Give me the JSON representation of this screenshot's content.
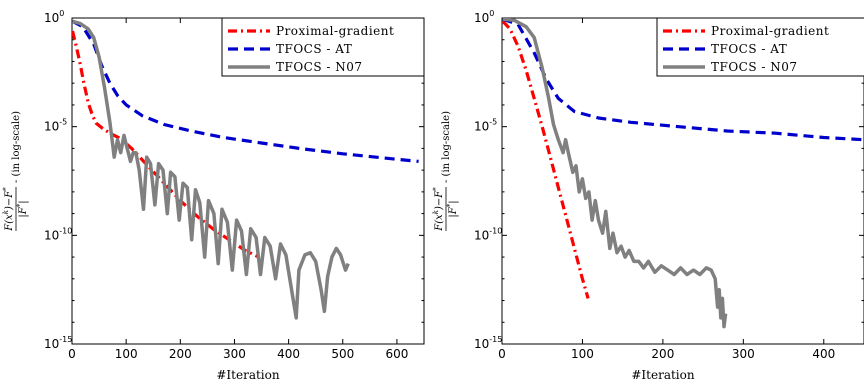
{
  "chart_data": [
    {
      "type": "line",
      "xlabel": "#Iteration",
      "ylabel": "F(x^k)−F* / |F*|  (in log-scale)",
      "ylabel_parts": {
        "num": "F(x",
        "k": "k",
        "rest": ")−F",
        "star": "*",
        "den": "|F",
        "suffix": " (in log-scale)"
      },
      "yscale": "log",
      "xlim": [
        0,
        650
      ],
      "ylim": [
        1e-15,
        1
      ],
      "xticks": [
        0,
        100,
        200,
        300,
        400,
        500,
        600
      ],
      "xtick_labels": [
        "0",
        "100",
        "200",
        "300",
        "400",
        "500",
        "600"
      ],
      "ytick_exponents": [
        0,
        -5,
        -10,
        -15
      ],
      "ytick_base": "10",
      "ytick_exp_labels": [
        "0",
        "-5",
        "-10",
        "-15"
      ],
      "legend_position": "top-right",
      "series": [
        {
          "name": "Proximal-gradient",
          "color": "#ff0000",
          "style": "dashdot",
          "points": [
            [
              1,
              -0.6
            ],
            [
              8,
              -1.3
            ],
            [
              15,
              -2.1
            ],
            [
              22,
              -3.0
            ],
            [
              30,
              -3.9
            ],
            [
              38,
              -4.5
            ],
            [
              45,
              -4.85
            ],
            [
              55,
              -5.05
            ],
            [
              70,
              -5.3
            ],
            [
              90,
              -5.55
            ],
            [
              110,
              -6.0
            ],
            [
              140,
              -6.8
            ],
            [
              170,
              -7.6
            ],
            [
              200,
              -8.4
            ],
            [
              230,
              -9.1
            ],
            [
              260,
              -9.7
            ],
            [
              290,
              -10.2
            ],
            [
              320,
              -10.7
            ],
            [
              345,
              -11.0
            ]
          ]
        },
        {
          "name": "TFOCS - AT",
          "color": "#0000cc",
          "style": "dashed",
          "points": [
            [
              1,
              -0.15
            ],
            [
              20,
              -0.4
            ],
            [
              40,
              -1.2
            ],
            [
              55,
              -2.2
            ],
            [
              70,
              -3.0
            ],
            [
              85,
              -3.6
            ],
            [
              100,
              -4.0
            ],
            [
              130,
              -4.5
            ],
            [
              170,
              -4.9
            ],
            [
              220,
              -5.2
            ],
            [
              280,
              -5.5
            ],
            [
              350,
              -5.75
            ],
            [
              420,
              -6.0
            ],
            [
              500,
              -6.25
            ],
            [
              580,
              -6.45
            ],
            [
              640,
              -6.6
            ]
          ]
        },
        {
          "name": "TFOCS - N07",
          "color": "#808080",
          "style": "solid",
          "points": [
            [
              1,
              -0.15
            ],
            [
              15,
              -0.25
            ],
            [
              30,
              -0.5
            ],
            [
              40,
              -0.9
            ],
            [
              50,
              -1.8
            ],
            [
              60,
              -3.2
            ],
            [
              70,
              -4.8
            ],
            [
              78,
              -6.4
            ],
            [
              84,
              -5.6
            ],
            [
              90,
              -6.2
            ],
            [
              96,
              -5.4
            ],
            [
              102,
              -6.0
            ],
            [
              108,
              -6.6
            ],
            [
              113,
              -6.2
            ],
            [
              118,
              -6.2
            ],
            [
              124,
              -7.0
            ],
            [
              132,
              -8.8
            ],
            [
              138,
              -6.4
            ],
            [
              145,
              -6.7
            ],
            [
              153,
              -8.6
            ],
            [
              160,
              -6.7
            ],
            [
              168,
              -7.0
            ],
            [
              176,
              -9.0
            ],
            [
              182,
              -7.1
            ],
            [
              190,
              -7.3
            ],
            [
              198,
              -9.3
            ],
            [
              205,
              -7.6
            ],
            [
              213,
              -7.8
            ],
            [
              221,
              -10.2
            ],
            [
              228,
              -7.9
            ],
            [
              236,
              -8.5
            ],
            [
              245,
              -11.0
            ],
            [
              252,
              -8.4
            ],
            [
              262,
              -9.0
            ],
            [
              270,
              -11.3
            ],
            [
              277,
              -8.8
            ],
            [
              287,
              -9.4
            ],
            [
              296,
              -11.6
            ],
            [
              304,
              -9.3
            ],
            [
              313,
              -9.8
            ],
            [
              322,
              -11.8
            ],
            [
              330,
              -9.7
            ],
            [
              340,
              -10.1
            ],
            [
              348,
              -11.8
            ],
            [
              356,
              -10.1
            ],
            [
              366,
              -10.5
            ],
            [
              376,
              -12.0
            ],
            [
              385,
              -10.4
            ],
            [
              395,
              -10.9
            ],
            [
              406,
              -12.6
            ],
            [
              414,
              -13.8
            ],
            [
              419,
              -11.6
            ],
            [
              430,
              -10.9
            ],
            [
              440,
              -10.8
            ],
            [
              450,
              -11.2
            ],
            [
              460,
              -12.5
            ],
            [
              466,
              -13.5
            ],
            [
              472,
              -11.9
            ],
            [
              480,
              -11.0
            ],
            [
              488,
              -10.6
            ],
            [
              496,
              -10.9
            ],
            [
              505,
              -11.6
            ],
            [
              510,
              -11.3
            ]
          ]
        }
      ]
    },
    {
      "type": "line",
      "xlabel": "#Iteration",
      "ylabel": "F(x^k)−F* / |F*|  (in log-scale)",
      "ylabel_parts": {
        "num": "F(x",
        "k": "k",
        "rest": ")−F",
        "star": "*",
        "den": "|F",
        "suffix": " (in log-scale)"
      },
      "yscale": "log",
      "xlim": [
        0,
        450
      ],
      "ylim": [
        1e-15,
        1
      ],
      "xticks": [
        0,
        100,
        200,
        300,
        400
      ],
      "xtick_labels": [
        "0",
        "100",
        "200",
        "300",
        "400"
      ],
      "ytick_exponents": [
        0,
        -5,
        -10,
        -15
      ],
      "ytick_base": "10",
      "ytick_exp_labels": [
        "0",
        "-5",
        "-10",
        "-15"
      ],
      "legend_position": "top-right",
      "series": [
        {
          "name": "Proximal-gradient",
          "color": "#ff0000",
          "style": "dashdot",
          "points": [
            [
              1,
              -0.15
            ],
            [
              10,
              -0.5
            ],
            [
              20,
              -1.3
            ],
            [
              30,
              -2.4
            ],
            [
              40,
              -3.7
            ],
            [
              50,
              -5.0
            ],
            [
              60,
              -6.4
            ],
            [
              70,
              -7.8
            ],
            [
              80,
              -9.2
            ],
            [
              90,
              -10.6
            ],
            [
              100,
              -12.0
            ],
            [
              107,
              -12.9
            ]
          ]
        },
        {
          "name": "TFOCS - AT",
          "color": "#0000cc",
          "style": "dashed",
          "points": [
            [
              1,
              -0.05
            ],
            [
              20,
              -0.3
            ],
            [
              40,
              -1.6
            ],
            [
              55,
              -2.8
            ],
            [
              70,
              -3.7
            ],
            [
              90,
              -4.3
            ],
            [
              120,
              -4.6
            ],
            [
              160,
              -4.8
            ],
            [
              220,
              -5.0
            ],
            [
              280,
              -5.2
            ],
            [
              340,
              -5.3
            ],
            [
              400,
              -5.5
            ],
            [
              450,
              -5.6
            ]
          ]
        },
        {
          "name": "TFOCS - N07",
          "color": "#808080",
          "style": "solid",
          "points": [
            [
              1,
              -0.05
            ],
            [
              15,
              -0.1
            ],
            [
              30,
              -0.4
            ],
            [
              40,
              -0.9
            ],
            [
              50,
              -2.3
            ],
            [
              58,
              -3.7
            ],
            [
              64,
              -4.9
            ],
            [
              70,
              -5.6
            ],
            [
              76,
              -6.2
            ],
            [
              79,
              -5.6
            ],
            [
              83,
              -6.3
            ],
            [
              88,
              -7.1
            ],
            [
              92,
              -6.8
            ],
            [
              96,
              -8.0
            ],
            [
              100,
              -7.4
            ],
            [
              104,
              -8.3
            ],
            [
              108,
              -8.0
            ],
            [
              112,
              -9.3
            ],
            [
              116,
              -8.4
            ],
            [
              120,
              -9.3
            ],
            [
              125,
              -9.9
            ],
            [
              129,
              -8.9
            ],
            [
              134,
              -10.6
            ],
            [
              138,
              -9.9
            ],
            [
              143,
              -10.8
            ],
            [
              148,
              -10.5
            ],
            [
              153,
              -11.0
            ],
            [
              158,
              -10.7
            ],
            [
              164,
              -11.2
            ],
            [
              170,
              -11.2
            ],
            [
              176,
              -11.5
            ],
            [
              182,
              -11.2
            ],
            [
              190,
              -11.7
            ],
            [
              198,
              -11.4
            ],
            [
              206,
              -11.6
            ],
            [
              214,
              -11.8
            ],
            [
              222,
              -11.5
            ],
            [
              230,
              -11.8
            ],
            [
              238,
              -11.6
            ],
            [
              246,
              -11.8
            ],
            [
              254,
              -11.5
            ],
            [
              260,
              -11.6
            ],
            [
              265,
              -12.0
            ],
            [
              268,
              -13.3
            ],
            [
              270,
              -12.5
            ],
            [
              272,
              -13.8
            ],
            [
              274,
              -12.9
            ],
            [
              276,
              -14.2
            ],
            [
              278,
              -13.6
            ]
          ]
        }
      ]
    }
  ]
}
